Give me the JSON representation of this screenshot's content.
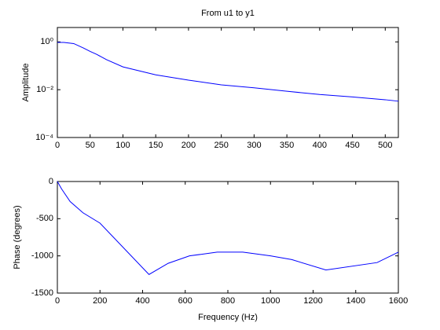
{
  "chart_data": [
    {
      "type": "line",
      "title": "From u1 to y1",
      "ylabel": "Amplitude",
      "log_y": true,
      "x": [
        0,
        10,
        25,
        40,
        50,
        60,
        75,
        100,
        150,
        200,
        250,
        300,
        350,
        400,
        450,
        500,
        520
      ],
      "series": [
        {
          "color": "#0000ff",
          "values": [
            0.95,
            0.95,
            0.85,
            0.55,
            0.4,
            0.3,
            0.18,
            0.09,
            0.042,
            0.025,
            0.016,
            0.012,
            0.0086,
            0.0063,
            0.005,
            0.0038,
            0.0033
          ]
        }
      ],
      "xlim": [
        0,
        520
      ],
      "xticks": [
        0,
        50,
        100,
        150,
        200,
        250,
        300,
        350,
        400,
        450,
        500
      ],
      "ylim": [
        0.0001,
        4
      ],
      "yticks": [
        {
          "value": 0.0001,
          "label": "10⁻⁴"
        },
        {
          "value": 0.01,
          "label": "10⁻²"
        },
        {
          "value": 1,
          "label": "10⁰"
        }
      ]
    },
    {
      "type": "line",
      "ylabel": "Phase (degrees)",
      "xlabel": "Frequency (Hz)",
      "log_y": false,
      "x": [
        0,
        20,
        60,
        120,
        200,
        430,
        520,
        620,
        750,
        870,
        1000,
        1100,
        1260,
        1500,
        1600
      ],
      "series": [
        {
          "color": "#0000ff",
          "values": [
            0,
            -100,
            -270,
            -420,
            -560,
            -1250,
            -1100,
            -1000,
            -950,
            -950,
            -1000,
            -1050,
            -1190,
            -1090,
            -950
          ]
        }
      ],
      "xlim": [
        0,
        1600
      ],
      "xticks": [
        0,
        200,
        400,
        600,
        800,
        1000,
        1200,
        1400,
        1600
      ],
      "ylim": [
        -1500,
        0
      ],
      "yticks": [
        -1500,
        -1000,
        -500,
        0
      ]
    }
  ]
}
